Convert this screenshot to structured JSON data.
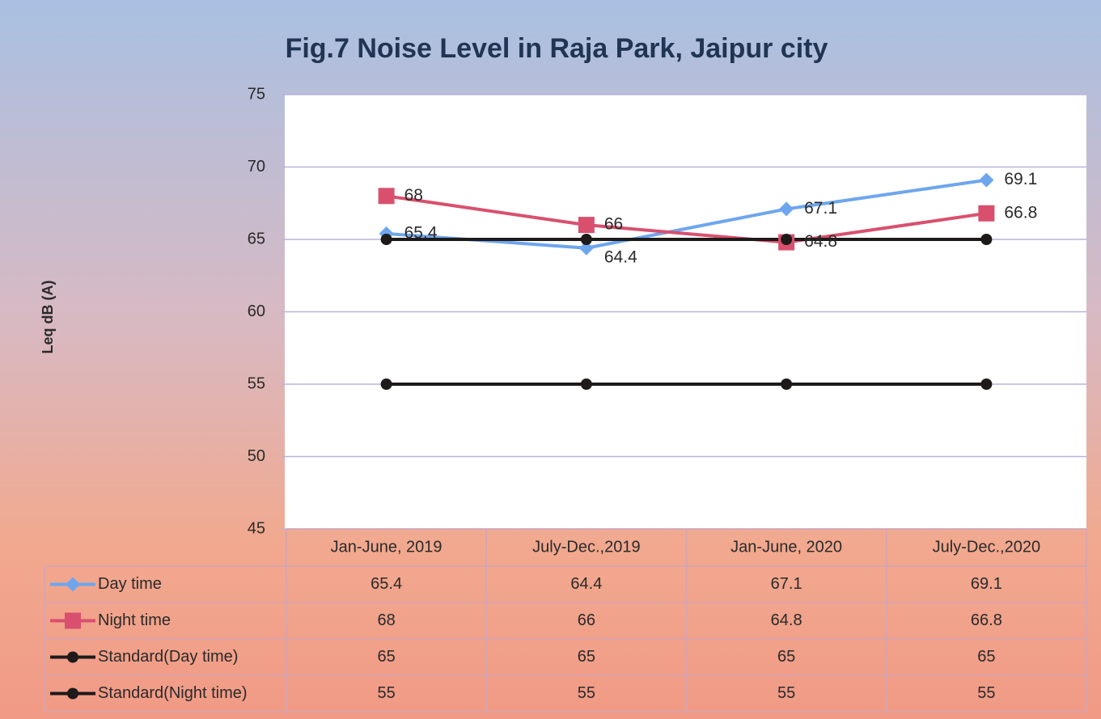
{
  "chart_data": {
    "type": "line",
    "title": "Fig.7 Noise Level in Raja Park, Jaipur city",
    "y_label": "Leq dB (A)",
    "categories": [
      "Jan-June, 2019",
      "July-Dec.,2019",
      "Jan-June, 2020",
      "July-Dec.,2020"
    ],
    "series": [
      {
        "name": "Day time",
        "color": "#6ea6ee",
        "marker": "diamond",
        "data_labels": true,
        "values": [
          65.4,
          64.4,
          67.1,
          69.1
        ]
      },
      {
        "name": "Night time",
        "color": "#d9506e",
        "marker": "square",
        "data_labels": true,
        "values": [
          68,
          66,
          64.8,
          66.8
        ]
      },
      {
        "name": "Standard(Day time)",
        "color": "#1e1a1a",
        "marker": "circle",
        "data_labels": false,
        "values": [
          65,
          65,
          65,
          65
        ]
      },
      {
        "name": "Standard(Night time)",
        "color": "#1e1a1a",
        "marker": "circle",
        "data_labels": false,
        "values": [
          55,
          55,
          55,
          55
        ]
      }
    ],
    "ylim": [
      45,
      75
    ],
    "yticks": [
      45,
      50,
      55,
      60,
      65,
      70,
      75
    ],
    "grid": true,
    "data_table": true
  }
}
